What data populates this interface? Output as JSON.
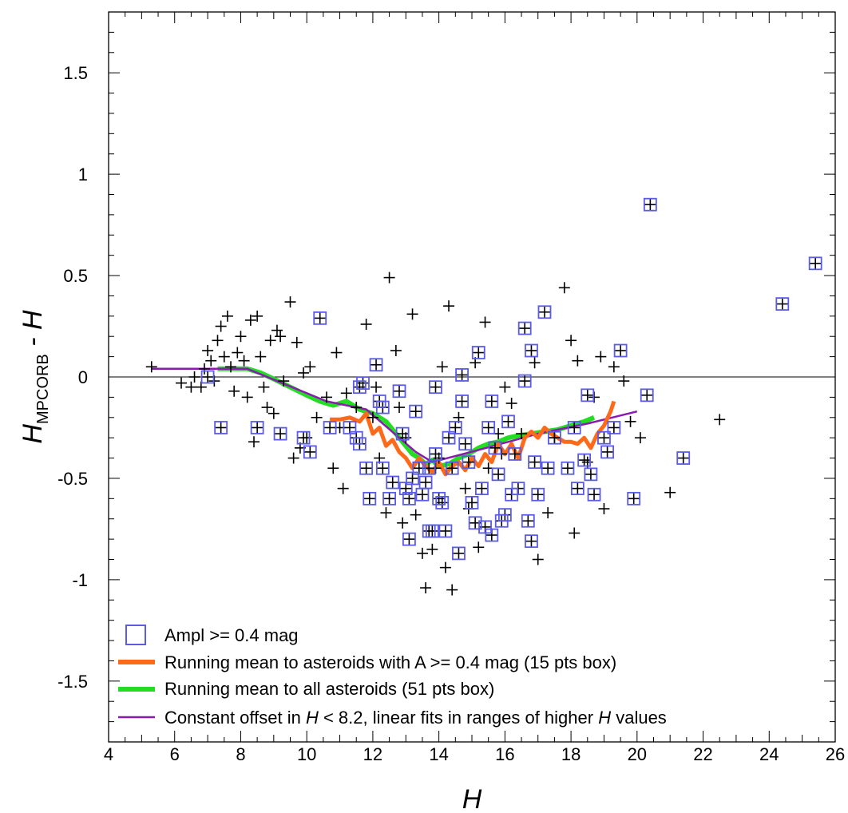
{
  "chart_data": {
    "type": "scatter",
    "xlabel": "H",
    "ylabel": {
      "main": "H",
      "sub": "MPCORB",
      "suffix": " - H"
    },
    "xlim": [
      4,
      26
    ],
    "ylim": [
      -1.8,
      1.8
    ],
    "x_ticks": [
      "4",
      "6",
      "8",
      "10",
      "12",
      "14",
      "16",
      "18",
      "20",
      "22",
      "24",
      "26"
    ],
    "y_ticks": [
      "-1.5",
      "-1",
      "-0.5",
      "0",
      "0.5",
      "1",
      "1.5"
    ],
    "grid": false,
    "zero_line": true,
    "legend_position": "bottom-left",
    "colors": {
      "square": "#5b5bea",
      "orange": "#ff6a1a",
      "green": "#22dd22",
      "purple": "#8a1ab0",
      "cross": "#000000"
    },
    "legend": [
      {
        "key": "square",
        "label": "Ampl >= 0.4 mag"
      },
      {
        "key": "orange",
        "label": "Running mean to asteroids with A >= 0.4 mag (15 pts box)"
      },
      {
        "key": "green",
        "label": "Running mean to all asteroids (51 pts box)"
      },
      {
        "key": "purple",
        "label_parts": [
          "Constant offset in ",
          "H",
          " < 8.2, linear fits in ranges of higher ",
          "H",
          " values"
        ]
      }
    ],
    "series": [
      {
        "name": "Ampl >= 0.4 mag",
        "points": [
          [
            7.0,
            0.0
          ],
          [
            7.4,
            -0.25
          ],
          [
            8.5,
            -0.25
          ],
          [
            9.2,
            -0.28
          ],
          [
            9.9,
            -0.3
          ],
          [
            10.1,
            -0.37
          ],
          [
            10.4,
            0.29
          ],
          [
            10.7,
            -0.25
          ],
          [
            11.3,
            -0.25
          ],
          [
            11.5,
            -0.3
          ],
          [
            11.6,
            -0.33
          ],
          [
            11.6,
            -0.05
          ],
          [
            11.7,
            -0.03
          ],
          [
            11.8,
            -0.45
          ],
          [
            11.9,
            -0.6
          ],
          [
            12.1,
            0.06
          ],
          [
            12.2,
            -0.12
          ],
          [
            12.3,
            -0.15
          ],
          [
            12.3,
            -0.45
          ],
          [
            12.5,
            -0.6
          ],
          [
            12.6,
            -0.52
          ],
          [
            12.8,
            -0.07
          ],
          [
            12.9,
            -0.28
          ],
          [
            13.0,
            -0.55
          ],
          [
            13.1,
            -0.6
          ],
          [
            13.1,
            -0.8
          ],
          [
            13.2,
            -0.5
          ],
          [
            13.3,
            -0.17
          ],
          [
            13.4,
            -0.45
          ],
          [
            13.5,
            -0.58
          ],
          [
            13.6,
            -0.52
          ],
          [
            13.7,
            -0.45
          ],
          [
            13.8,
            -0.76
          ],
          [
            13.9,
            -0.05
          ],
          [
            13.9,
            -0.38
          ],
          [
            14.0,
            -0.6
          ],
          [
            14.1,
            -0.62
          ],
          [
            14.2,
            -0.76
          ],
          [
            14.3,
            -0.3
          ],
          [
            14.4,
            -0.45
          ],
          [
            14.5,
            -0.25
          ],
          [
            14.6,
            -0.87
          ],
          [
            14.7,
            0.01
          ],
          [
            14.7,
            -0.12
          ],
          [
            14.8,
            -0.33
          ],
          [
            14.9,
            -0.42
          ],
          [
            15.0,
            -0.62
          ],
          [
            15.1,
            -0.72
          ],
          [
            15.2,
            0.12
          ],
          [
            15.3,
            -0.55
          ],
          [
            15.4,
            -0.74
          ],
          [
            15.5,
            -0.25
          ],
          [
            15.6,
            -0.12
          ],
          [
            15.6,
            -0.78
          ],
          [
            15.7,
            -0.35
          ],
          [
            15.8,
            -0.48
          ],
          [
            15.9,
            -0.71
          ],
          [
            16.0,
            -0.68
          ],
          [
            16.1,
            -0.22
          ],
          [
            16.2,
            -0.58
          ],
          [
            16.3,
            -0.38
          ],
          [
            16.4,
            -0.55
          ],
          [
            16.6,
            0.24
          ],
          [
            16.6,
            -0.02
          ],
          [
            16.7,
            -0.71
          ],
          [
            16.8,
            0.13
          ],
          [
            16.9,
            -0.42
          ],
          [
            17.0,
            -0.58
          ],
          [
            17.2,
            0.32
          ],
          [
            17.3,
            -0.45
          ],
          [
            17.5,
            -0.3
          ],
          [
            17.9,
            -0.45
          ],
          [
            18.1,
            -0.25
          ],
          [
            18.2,
            -0.55
          ],
          [
            18.4,
            -0.41
          ],
          [
            18.5,
            -0.09
          ],
          [
            18.6,
            -0.48
          ],
          [
            18.7,
            -0.58
          ],
          [
            19.0,
            -0.3
          ],
          [
            19.1,
            -0.37
          ],
          [
            19.3,
            -0.25
          ],
          [
            19.5,
            0.13
          ],
          [
            19.9,
            -0.6
          ],
          [
            20.3,
            -0.09
          ],
          [
            20.4,
            0.85
          ],
          [
            21.4,
            -0.4
          ],
          [
            24.4,
            0.36
          ],
          [
            25.4,
            0.56
          ],
          [
            16.8,
            -0.81
          ],
          [
            13.7,
            -0.76
          ]
        ]
      },
      {
        "name": "all",
        "points": [
          [
            5.3,
            0.05
          ],
          [
            6.2,
            -0.03
          ],
          [
            6.5,
            -0.05
          ],
          [
            6.6,
            0.0
          ],
          [
            6.8,
            -0.05
          ],
          [
            6.9,
            0.04
          ],
          [
            7.0,
            0.13
          ],
          [
            7.1,
            0.08
          ],
          [
            7.2,
            -0.02
          ],
          [
            7.3,
            0.18
          ],
          [
            7.4,
            0.25
          ],
          [
            7.5,
            0.1
          ],
          [
            7.6,
            0.3
          ],
          [
            7.7,
            0.05
          ],
          [
            7.8,
            -0.07
          ],
          [
            7.9,
            0.12
          ],
          [
            8.0,
            0.2
          ],
          [
            8.1,
            0.08
          ],
          [
            8.2,
            -0.1
          ],
          [
            8.3,
            0.28
          ],
          [
            8.4,
            -0.32
          ],
          [
            8.5,
            0.3
          ],
          [
            8.6,
            0.1
          ],
          [
            8.7,
            -0.05
          ],
          [
            8.8,
            -0.15
          ],
          [
            8.9,
            0.18
          ],
          [
            9.0,
            -0.18
          ],
          [
            9.1,
            0.23
          ],
          [
            9.2,
            0.2
          ],
          [
            9.3,
            -0.02
          ],
          [
            9.5,
            0.37
          ],
          [
            9.6,
            -0.4
          ],
          [
            9.7,
            0.17
          ],
          [
            9.8,
            -0.35
          ],
          [
            9.9,
            0.02
          ],
          [
            10.0,
            -0.3
          ],
          [
            10.1,
            0.05
          ],
          [
            10.3,
            -0.2
          ],
          [
            10.6,
            -0.1
          ],
          [
            10.8,
            -0.45
          ],
          [
            10.9,
            0.12
          ],
          [
            11.0,
            -0.25
          ],
          [
            11.2,
            -0.08
          ],
          [
            11.5,
            -0.15
          ],
          [
            11.8,
            0.26
          ],
          [
            12.0,
            -0.2
          ],
          [
            12.2,
            -0.4
          ],
          [
            12.4,
            -0.67
          ],
          [
            12.5,
            0.49
          ],
          [
            12.7,
            0.13
          ],
          [
            12.9,
            -0.72
          ],
          [
            13.0,
            -0.3
          ],
          [
            13.2,
            0.31
          ],
          [
            13.3,
            -0.68
          ],
          [
            13.5,
            -0.87
          ],
          [
            13.6,
            -1.04
          ],
          [
            13.8,
            -0.85
          ],
          [
            14.0,
            -0.4
          ],
          [
            14.1,
            0.05
          ],
          [
            14.2,
            -0.94
          ],
          [
            14.3,
            0.35
          ],
          [
            14.4,
            -1.05
          ],
          [
            14.6,
            -0.2
          ],
          [
            14.8,
            -0.55
          ],
          [
            15.1,
            0.07
          ],
          [
            15.2,
            -0.84
          ],
          [
            15.4,
            0.27
          ],
          [
            15.5,
            -0.45
          ],
          [
            15.8,
            -0.28
          ],
          [
            16.0,
            -0.05
          ],
          [
            16.2,
            -0.13
          ],
          [
            16.5,
            -0.28
          ],
          [
            16.9,
            0.07
          ],
          [
            17.0,
            -0.9
          ],
          [
            17.3,
            -0.67
          ],
          [
            17.5,
            -0.3
          ],
          [
            17.8,
            0.44
          ],
          [
            18.0,
            0.18
          ],
          [
            18.1,
            -0.77
          ],
          [
            18.2,
            0.08
          ],
          [
            18.5,
            -0.42
          ],
          [
            18.7,
            -0.1
          ],
          [
            18.9,
            0.1
          ],
          [
            19.0,
            -0.65
          ],
          [
            19.3,
            0.05
          ],
          [
            19.6,
            -0.02
          ],
          [
            19.8,
            -0.22
          ],
          [
            20.1,
            -0.3
          ],
          [
            21.0,
            -0.57
          ],
          [
            22.5,
            -0.21
          ],
          [
            12.8,
            -0.15
          ],
          [
            11.1,
            -0.55
          ],
          [
            14.9,
            -0.65
          ],
          [
            15.9,
            -0.38
          ],
          [
            13.9,
            -0.45
          ],
          [
            12.1,
            -0.05
          ]
        ]
      },
      {
        "name": "Running mean to asteroids with A >= 0.4 mag (15 pts box)",
        "points": [
          [
            10.7,
            -0.21
          ],
          [
            11.0,
            -0.21
          ],
          [
            11.3,
            -0.2
          ],
          [
            11.6,
            -0.22
          ],
          [
            11.8,
            -0.18
          ],
          [
            12.0,
            -0.28
          ],
          [
            12.2,
            -0.25
          ],
          [
            12.4,
            -0.34
          ],
          [
            12.6,
            -0.31
          ],
          [
            12.8,
            -0.37
          ],
          [
            13.0,
            -0.4
          ],
          [
            13.2,
            -0.45
          ],
          [
            13.4,
            -0.4
          ],
          [
            13.6,
            -0.44
          ],
          [
            13.8,
            -0.47
          ],
          [
            14.0,
            -0.42
          ],
          [
            14.2,
            -0.48
          ],
          [
            14.4,
            -0.44
          ],
          [
            14.6,
            -0.42
          ],
          [
            14.8,
            -0.46
          ],
          [
            15.0,
            -0.4
          ],
          [
            15.2,
            -0.44
          ],
          [
            15.4,
            -0.38
          ],
          [
            15.6,
            -0.42
          ],
          [
            15.8,
            -0.33
          ],
          [
            16.0,
            -0.38
          ],
          [
            16.2,
            -0.33
          ],
          [
            16.4,
            -0.4
          ],
          [
            16.6,
            -0.3
          ],
          [
            16.8,
            -0.27
          ],
          [
            17.0,
            -0.3
          ],
          [
            17.2,
            -0.25
          ],
          [
            17.4,
            -0.28
          ],
          [
            17.6,
            -0.3
          ],
          [
            17.8,
            -0.32
          ],
          [
            18.0,
            -0.32
          ],
          [
            18.2,
            -0.33
          ],
          [
            18.4,
            -0.3
          ],
          [
            18.6,
            -0.35
          ],
          [
            18.8,
            -0.28
          ],
          [
            19.0,
            -0.24
          ],
          [
            19.2,
            -0.17
          ],
          [
            19.3,
            -0.12
          ]
        ]
      },
      {
        "name": "Running mean to all asteroids (51 pts box)",
        "points": [
          [
            7.3,
            0.04
          ],
          [
            7.8,
            0.04
          ],
          [
            8.2,
            0.04
          ],
          [
            8.6,
            0.02
          ],
          [
            9.0,
            -0.01
          ],
          [
            9.5,
            -0.05
          ],
          [
            10.0,
            -0.09
          ],
          [
            10.4,
            -0.12
          ],
          [
            10.8,
            -0.14
          ],
          [
            11.2,
            -0.12
          ],
          [
            11.6,
            -0.16
          ],
          [
            12.0,
            -0.18
          ],
          [
            12.4,
            -0.22
          ],
          [
            12.8,
            -0.3
          ],
          [
            13.2,
            -0.38
          ],
          [
            13.4,
            -0.4
          ],
          [
            13.6,
            -0.43
          ],
          [
            13.8,
            -0.41
          ],
          [
            14.0,
            -0.44
          ],
          [
            14.3,
            -0.43
          ],
          [
            14.6,
            -0.4
          ],
          [
            14.9,
            -0.38
          ],
          [
            15.2,
            -0.35
          ],
          [
            15.5,
            -0.33
          ],
          [
            15.8,
            -0.32
          ],
          [
            16.1,
            -0.3
          ],
          [
            16.4,
            -0.29
          ],
          [
            16.8,
            -0.28
          ],
          [
            17.2,
            -0.27
          ],
          [
            17.6,
            -0.26
          ],
          [
            18.0,
            -0.24
          ],
          [
            18.4,
            -0.22
          ],
          [
            18.7,
            -0.2
          ]
        ]
      },
      {
        "name": "purple_fit",
        "points": [
          [
            5.3,
            0.04
          ],
          [
            8.2,
            0.04
          ],
          [
            10.6,
            -0.12
          ],
          [
            11.8,
            -0.16
          ],
          [
            13.3,
            -0.37
          ],
          [
            13.8,
            -0.42
          ],
          [
            15.2,
            -0.36
          ],
          [
            17.0,
            -0.28
          ],
          [
            18.5,
            -0.23
          ],
          [
            20.0,
            -0.17
          ]
        ]
      }
    ]
  }
}
